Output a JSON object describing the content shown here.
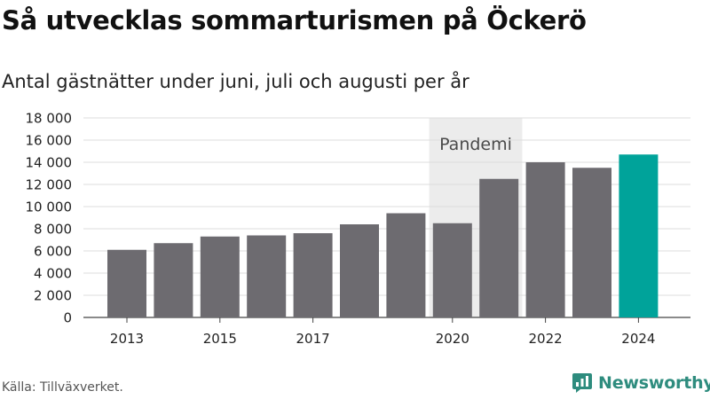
{
  "header": {
    "title": "Så utvecklas sommarturismen på Öckerö",
    "subtitle": "Antal gästnätter under juni, juli och augusti per år"
  },
  "footer": {
    "source": "Källa: Tillväxverket.",
    "brand": "Newsworthy",
    "brand_icon": "newsworthy-logo-icon"
  },
  "colors": {
    "bar": "#6d6b70",
    "highlight": "#00a39a",
    "shade": "#ececec",
    "grid": "#dddddd",
    "brand": "#2e8c7e"
  },
  "chart_data": {
    "type": "bar",
    "categories": [
      "2013",
      "2014",
      "2015",
      "2016",
      "2017",
      "2018",
      "2019",
      "2020",
      "2021",
      "2022",
      "2023",
      "2024"
    ],
    "x_tick_labels": [
      "2013",
      "",
      "2015",
      "",
      "2017",
      "",
      "",
      "2020",
      "",
      "2022",
      "",
      "2024"
    ],
    "values": [
      6100,
      6700,
      7300,
      7400,
      7600,
      8400,
      9400,
      8500,
      12500,
      14000,
      13500,
      14700
    ],
    "highlight": [
      "2024"
    ],
    "ylim": [
      0,
      18000
    ],
    "yticks": [
      0,
      2000,
      4000,
      6000,
      8000,
      10000,
      12000,
      14000,
      16000,
      18000
    ],
    "ytick_labels": [
      "0",
      "2 000",
      "4 000",
      "6 000",
      "8 000",
      "10 000",
      "12 000",
      "14 000",
      "16 000",
      "18 000"
    ],
    "grid": true,
    "annotation": {
      "label": "Pandemi",
      "span": [
        "2020",
        "2021"
      ]
    }
  }
}
